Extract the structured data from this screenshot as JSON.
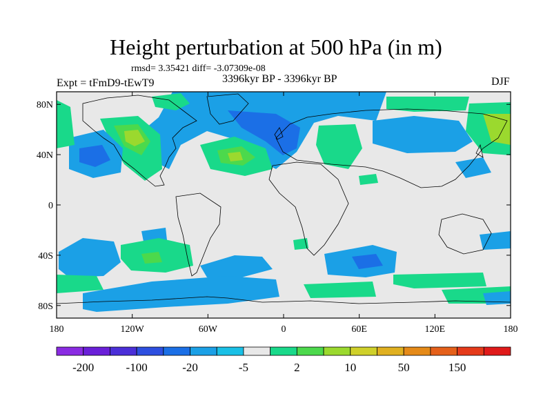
{
  "title": "Height perturbation at 500 hPa (in m)",
  "stats": "rmsd= 3.35421 diff= -3.07309e-08",
  "left_label": "Expt = tFmD9-tEwT9",
  "center_label": "3396kyr BP - 3396kyr BP",
  "right_label": "DJF",
  "lon_ticks": [
    "180",
    "120W",
    "60W",
    "0",
    "60E",
    "120E",
    "180"
  ],
  "lat_ticks": [
    "80N",
    "40N",
    "0",
    "40S",
    "80S"
  ],
  "colors": {
    "background": "#e8e8e8",
    "coastline": "#000000"
  },
  "colorbar": {
    "labels": [
      "-200",
      "-100",
      "-20",
      "-5",
      "2",
      "10",
      "50",
      "150"
    ],
    "colors": [
      "#8a2be2",
      "#6a1fd8",
      "#4b2fd8",
      "#2d4fe0",
      "#1b6fe6",
      "#1ba0e6",
      "#19c0e6",
      "#e8e8e8",
      "#19d98a",
      "#4cd94c",
      "#9bd92e",
      "#cfd02a",
      "#e0b020",
      "#e58a18",
      "#e5601a",
      "#e53a1a",
      "#e01a1a"
    ]
  }
}
